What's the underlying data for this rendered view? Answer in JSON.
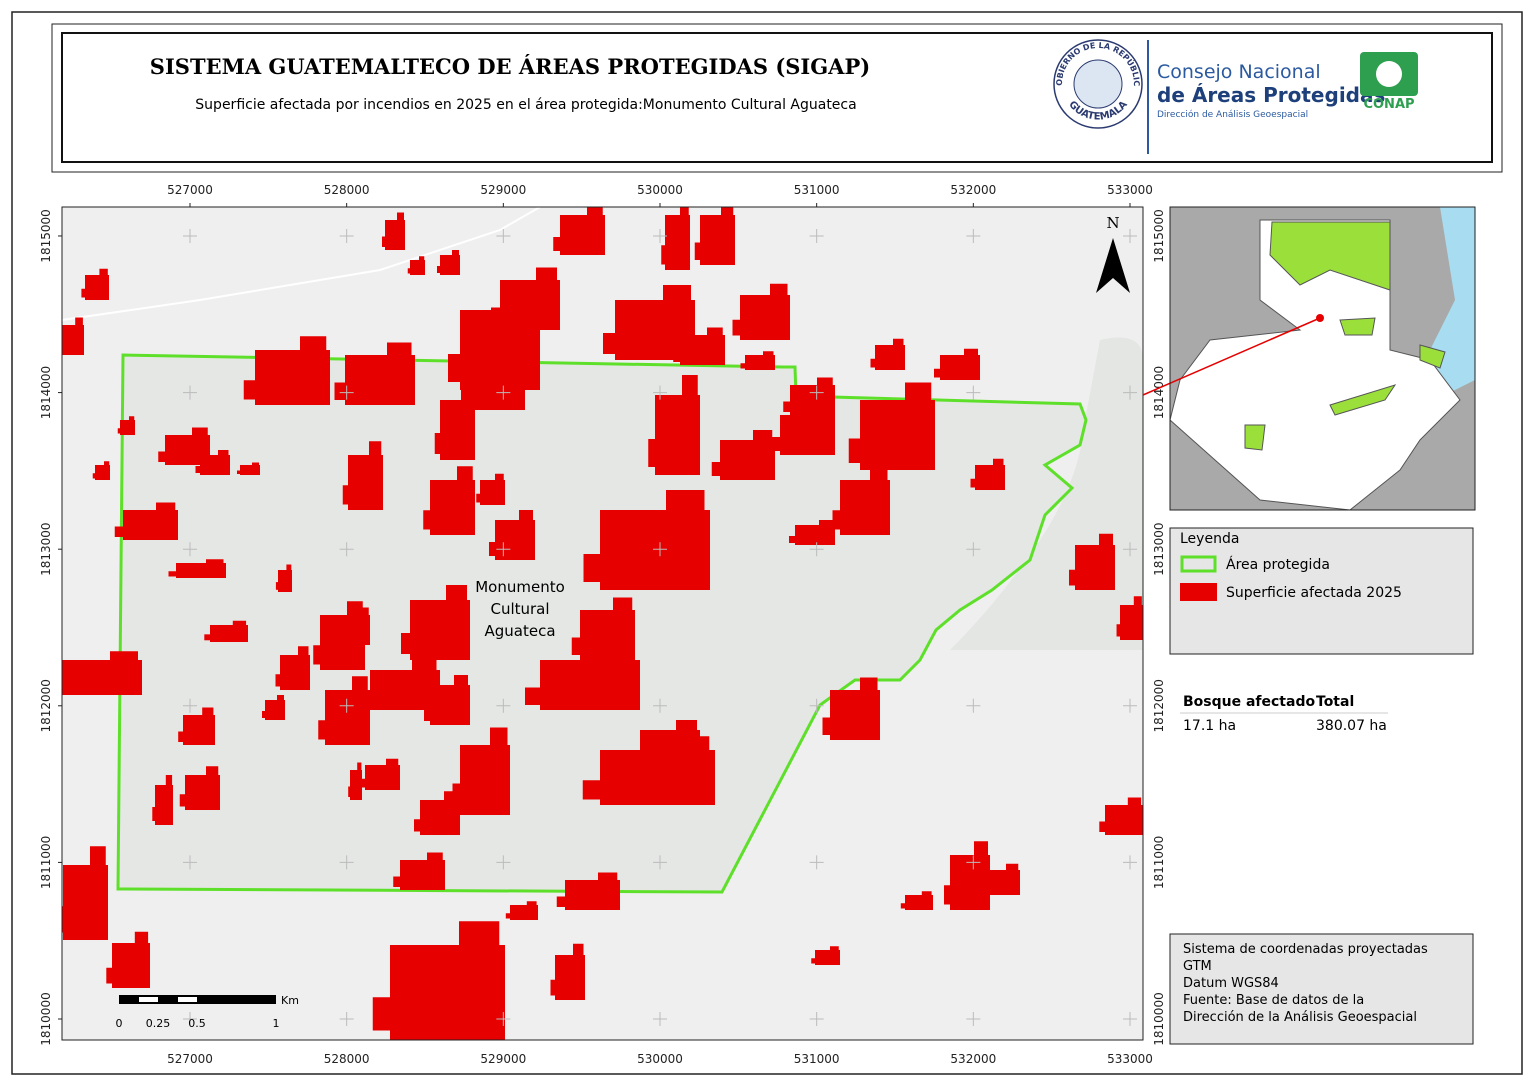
{
  "header": {
    "title": "SISTEMA GUATEMALTECO DE ÁREAS PROTEGIDAS  (SIGAP)",
    "subtitle": "Superficie afectada por incendios en 2025 en el área protegida:Monumento Cultural Aguateca"
  },
  "logos": {
    "gov_top": "GOBIERNO DE LA REPÚBLICA",
    "gov_bottom": "GUATEMALA",
    "conap_line1": "Consejo Nacional",
    "conap_line2": "de Áreas Protegidas",
    "conap_line3": "Dirección de Análisis Geoespacial",
    "conap_badge": "CONAP"
  },
  "map": {
    "xlim": [
      526183,
      533083
    ],
    "ylim": [
      1809866,
      1815185
    ],
    "xticks": [
      527000,
      528000,
      529000,
      530000,
      531000,
      532000,
      533000
    ],
    "yticks": [
      1810000,
      1811000,
      1812000,
      1813000,
      1814000,
      1815000
    ],
    "north": "N",
    "area_label": [
      "Monumento",
      "Cultural",
      "Aguateca"
    ],
    "scale_bar": {
      "labels": [
        "0",
        "0.25",
        "0.5",
        "1"
      ],
      "unit": "Km"
    }
  },
  "legend": {
    "title": "Leyenda",
    "items": [
      {
        "label": "Área protegida",
        "color": "#5ee02a"
      },
      {
        "label": "Superficie afectada 2025",
        "color": "#e60000"
      }
    ]
  },
  "table": {
    "headers": [
      "Bosque afectado",
      "Total"
    ],
    "rows": [
      [
        "17.1 ha",
        "380.07 ha"
      ]
    ]
  },
  "info": [
    "Sistema de coordenadas proyectadas",
    "GTM",
    "Datum WGS84",
    "Fuente: Base de datos de la",
    "Dirección de la Análisis Geoespacial"
  ]
}
